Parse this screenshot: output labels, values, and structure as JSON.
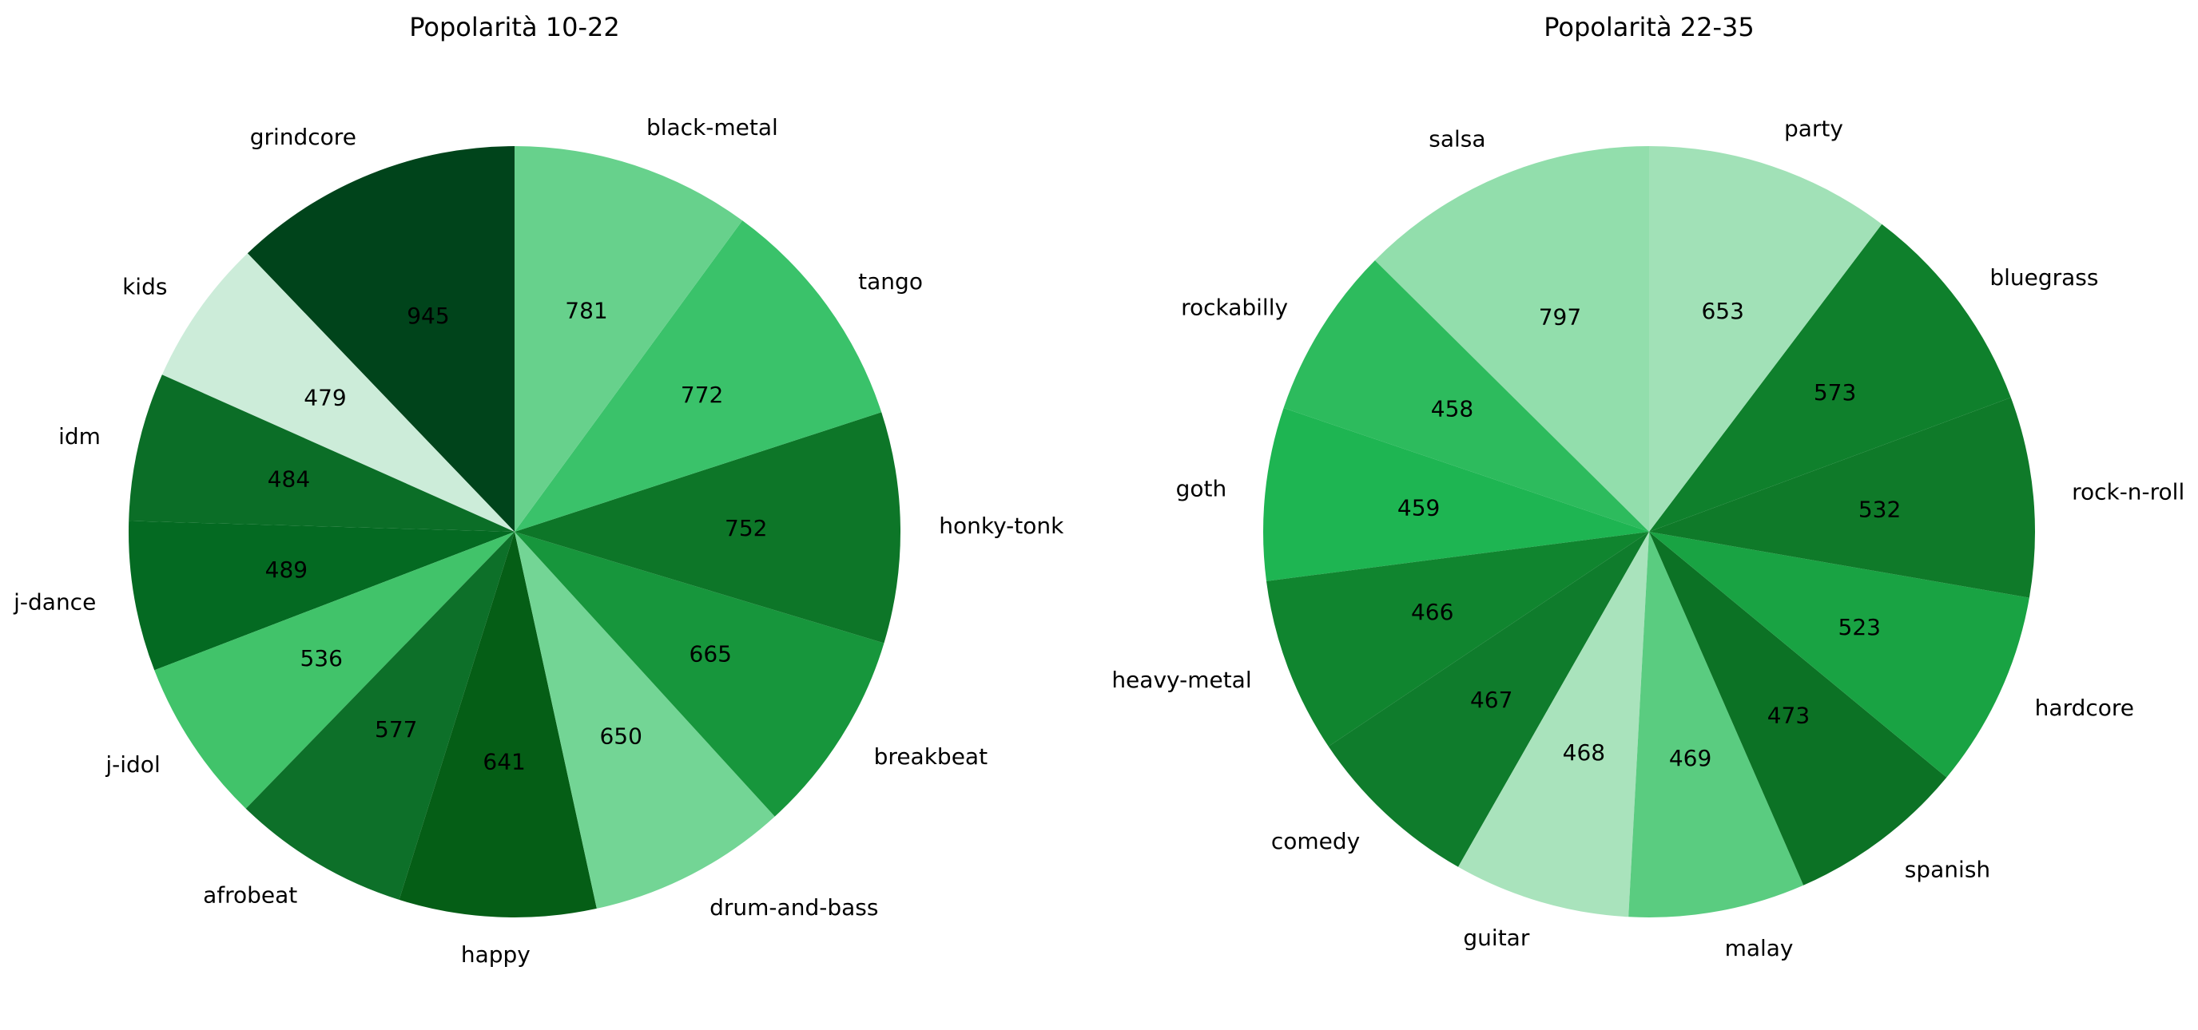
{
  "chart_data": [
    {
      "type": "pie",
      "title": "Popolarità 10-22",
      "start_angle_deg": 90,
      "direction": "counterclockwise",
      "categories": [
        "grindcore",
        "kids",
        "idm",
        "j-dance",
        "j-idol",
        "afrobeat",
        "happy",
        "drum-and-bass",
        "breakbeat",
        "honky-tonk",
        "tango",
        "black-metal"
      ],
      "values": [
        945,
        479,
        484,
        489,
        536,
        577,
        641,
        650,
        665,
        752,
        772,
        781
      ],
      "colors": [
        "#00441b",
        "#ccecd9",
        "#0b6e27",
        "#046a22",
        "#41c36a",
        "#0d7029",
        "#055e16",
        "#73d595",
        "#17963c",
        "#0d7628",
        "#3ac26a",
        "#67d18c"
      ]
    },
    {
      "type": "pie",
      "title": "Popolarità 22-35",
      "start_angle_deg": 90,
      "direction": "counterclockwise",
      "categories": [
        "salsa",
        "rockabilly",
        "goth",
        "heavy-metal",
        "comedy",
        "guitar",
        "malay",
        "spanish",
        "hardcore",
        "rock-n-roll",
        "bluegrass",
        "party"
      ],
      "values": [
        797,
        458,
        459,
        466,
        467,
        468,
        469,
        473,
        523,
        532,
        573,
        653
      ],
      "colors": [
        "#92deac",
        "#2dbb5d",
        "#1eb552",
        "#10852f",
        "#0f7c2c",
        "#a9e3bc",
        "#5acc80",
        "#0c7225",
        "#19a343",
        "#0f7a29",
        "#0f802c",
        "#a1e1b7"
      ]
    }
  ]
}
